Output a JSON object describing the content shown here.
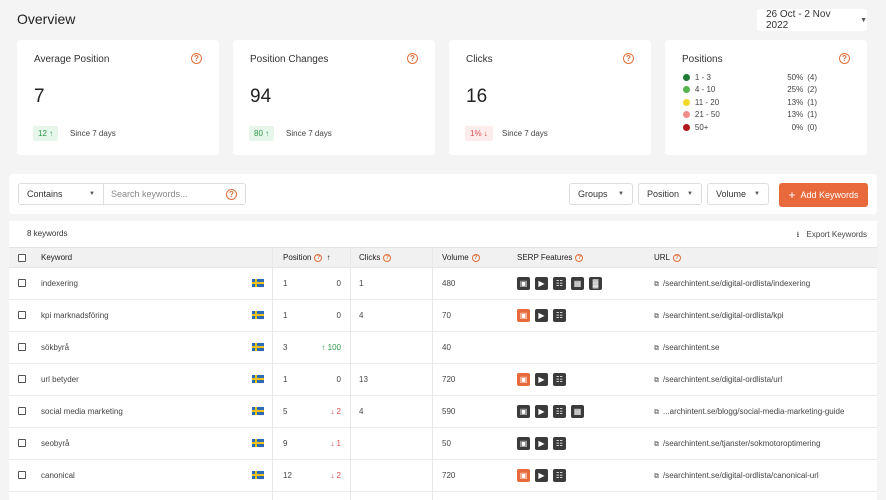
{
  "header": {
    "title": "Overview",
    "date_range": "26 Oct - 2 Nov 2022"
  },
  "cards": [
    {
      "title": "Average Position",
      "value": "7",
      "badge": "12 ↑",
      "badge_type": "up",
      "since": "Since 7 days"
    },
    {
      "title": "Position Changes",
      "value": "94",
      "badge": "80 ↑",
      "badge_type": "up",
      "since": "Since 7 days"
    },
    {
      "title": "Clicks",
      "value": "16",
      "badge": "1% ↓",
      "badge_type": "down",
      "since": "Since 7 days"
    }
  ],
  "positions_card": {
    "title": "Positions",
    "rows": [
      {
        "label": "1 - 3",
        "pct": "50%",
        "count": "(4)",
        "color": "#1e7a34"
      },
      {
        "label": "4 - 10",
        "pct": "25%",
        "count": "(2)",
        "color": "#54b54f"
      },
      {
        "label": "11 - 20",
        "pct": "13%",
        "count": "(1)",
        "color": "#f2d92a"
      },
      {
        "label": "21 - 50",
        "pct": "13%",
        "count": "(1)",
        "color": "#f08c8c"
      },
      {
        "label": "50+",
        "pct": "0%",
        "count": "(0)",
        "color": "#b2171b"
      }
    ]
  },
  "toolbar": {
    "contains": "Contains",
    "search_placeholder": "Search keywords...",
    "groups": "Groups",
    "position": "Position",
    "volume": "Volume",
    "add_keywords": "Add Keywords"
  },
  "table": {
    "count_label": "8 keywords",
    "export_label": "Export Keywords",
    "headers": {
      "keyword": "Keyword",
      "position": "Position",
      "clicks": "Clicks",
      "volume": "Volume",
      "serp": "SERP Features",
      "url": "URL"
    },
    "rows": [
      {
        "keyword": "indexering",
        "position": "1",
        "change": "0",
        "change_type": "flat",
        "clicks": "1",
        "volume": "480",
        "serp": [
          "dark",
          "dark",
          "dark",
          "dark",
          "dark"
        ],
        "url": "/searchintent.se/digital-ordlista/indexering"
      },
      {
        "keyword": "kpi marknadsföring",
        "position": "1",
        "change": "0",
        "change_type": "flat",
        "clicks": "4",
        "volume": "70",
        "serp": [
          "orange",
          "dark",
          "dark"
        ],
        "url": "/searchintent.se/digital-ordlista/kpi"
      },
      {
        "keyword": "sökbyrå",
        "position": "3",
        "change": "↑ 100",
        "change_type": "up",
        "clicks": "",
        "volume": "40",
        "serp": [],
        "url": "/searchintent.se"
      },
      {
        "keyword": "url betyder",
        "position": "1",
        "change": "0",
        "change_type": "flat",
        "clicks": "13",
        "volume": "720",
        "serp": [
          "orange",
          "dark",
          "dark"
        ],
        "url": "/searchintent.se/digital-ordlista/url"
      },
      {
        "keyword": "social media marketing",
        "position": "5",
        "change": "↓ 2",
        "change_type": "down",
        "clicks": "4",
        "volume": "590",
        "serp": [
          "dark",
          "dark",
          "dark",
          "dark"
        ],
        "url": "...archintent.se/blogg/social-media-marketing-guide"
      },
      {
        "keyword": "seobyrå",
        "position": "9",
        "change": "↓ 1",
        "change_type": "down",
        "clicks": "",
        "volume": "50",
        "serp": [
          "dark",
          "dark",
          "dark"
        ],
        "url": "/searchintent.se/tjanster/sokmotoroptimering"
      },
      {
        "keyword": "canonical",
        "position": "12",
        "change": "↓ 2",
        "change_type": "down",
        "clicks": "",
        "volume": "720",
        "serp": [
          "orange",
          "dark",
          "dark"
        ],
        "url": "/searchintent.se/digital-ordlista/canonical-url"
      }
    ]
  }
}
